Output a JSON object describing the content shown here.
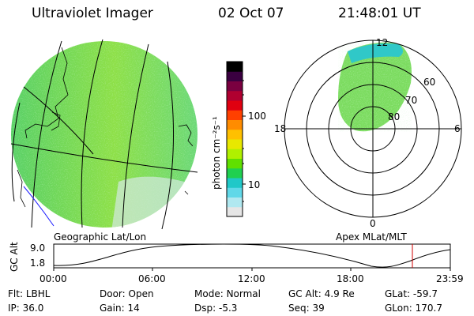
{
  "header": {
    "instrument": "Ultraviolet Imager",
    "date": "02 Oct 07",
    "time": "21:48:01 UT"
  },
  "map_left": {
    "caption": "Geographic Lat/Lon"
  },
  "map_right": {
    "caption": "Apex MLat/MLT",
    "mlt_labels": [
      "12",
      "18",
      "6",
      "0"
    ],
    "lat_labels": [
      "60",
      "70",
      "80"
    ]
  },
  "colorbar": {
    "unit_label": "photon cm⁻²s⁻¹",
    "ticks": [
      "100",
      "10"
    ],
    "colors": [
      "#000000",
      "#3a0040",
      "#7a0040",
      "#b00030",
      "#e00010",
      "#ff4000",
      "#ff8c00",
      "#ffc000",
      "#e8e800",
      "#b0f000",
      "#60e000",
      "#20d050",
      "#20c8c8",
      "#60d8e8",
      "#b0e8f0",
      "#e6e6e6"
    ]
  },
  "altitude_plot": {
    "ylabel": "GC Alt",
    "yticks": [
      "9.0",
      "1.8"
    ],
    "xticks": [
      "00:00",
      "06:00",
      "12:00",
      "18:00",
      "23:59"
    ],
    "marker_color": "#d00000"
  },
  "status": {
    "row1": [
      {
        "label": "Flt:",
        "value": "LBHL"
      },
      {
        "label": "Door:",
        "value": "Open"
      },
      {
        "label": "Mode:",
        "value": "Normal"
      },
      {
        "label": "GC Alt:",
        "value": "4.9 Re"
      },
      {
        "label": "GLat:",
        "value": "-59.7"
      }
    ],
    "row2": [
      {
        "label": "IP:",
        "value": "36.0"
      },
      {
        "label": "Gain:",
        "value": "14"
      },
      {
        "label": "Dsp:",
        "value": "-5.3"
      },
      {
        "label": "Seq:",
        "value": "39"
      },
      {
        "label": "GLon:",
        "value": "170.7"
      }
    ]
  }
}
